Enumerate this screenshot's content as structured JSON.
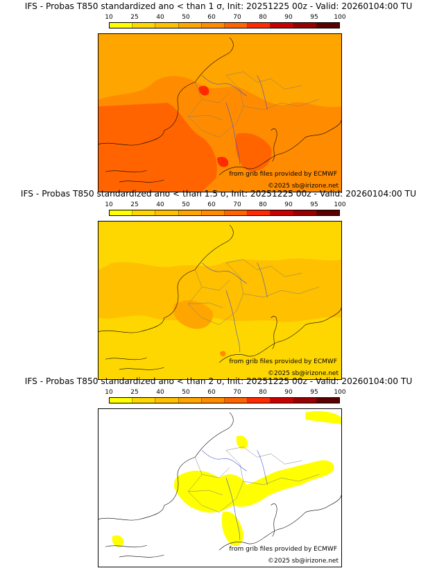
{
  "colorbar": {
    "ticks": [
      "10",
      "25",
      "40",
      "50",
      "60",
      "70",
      "80",
      "90",
      "95",
      "100"
    ],
    "colors": [
      "#ffff00",
      "#ffd700",
      "#ffc000",
      "#ffa500",
      "#ff8c00",
      "#ff6400",
      "#ff2a00",
      "#c80000",
      "#960000",
      "#5a0000"
    ]
  },
  "panels": [
    {
      "title": "IFS - Probas T850  standardized ano < than 1 σ, Init: 20251225 00z - Valid: 20260104:00 TU",
      "credit_grib": "from grib files provided by ECMWF",
      "credit_site": "©2025 sb@irizone.net",
      "base_color": "#ffa500",
      "warm_color": "#ff8c00",
      "hot_color": "#ff6400",
      "peak_color": "#ff2a00"
    },
    {
      "title": "IFS - Probas T850  standardized ano < than 1.5 σ, Init: 20251225 00z - Valid: 20260104:00 TU",
      "credit_grib": "from grib files provided by ECMWF",
      "credit_site": "©2025 sb@irizone.net",
      "base_color": "#ffd700",
      "warm_color": "#ffc000",
      "hot_color": "#ffa500",
      "peak_color": "#ff8c00"
    },
    {
      "title": "IFS - Probas T850  standardized ano < than 2 σ, Init: 20251225 00z - Valid: 20260104:00 TU",
      "credit_grib": "from grib files provided by ECMWF",
      "credit_site": "©2025 sb@irizone.net",
      "base_color": "#ffffff",
      "warm_color": "#ffff00",
      "hot_color": "#ffff00",
      "peak_color": "#ffff00"
    }
  ]
}
